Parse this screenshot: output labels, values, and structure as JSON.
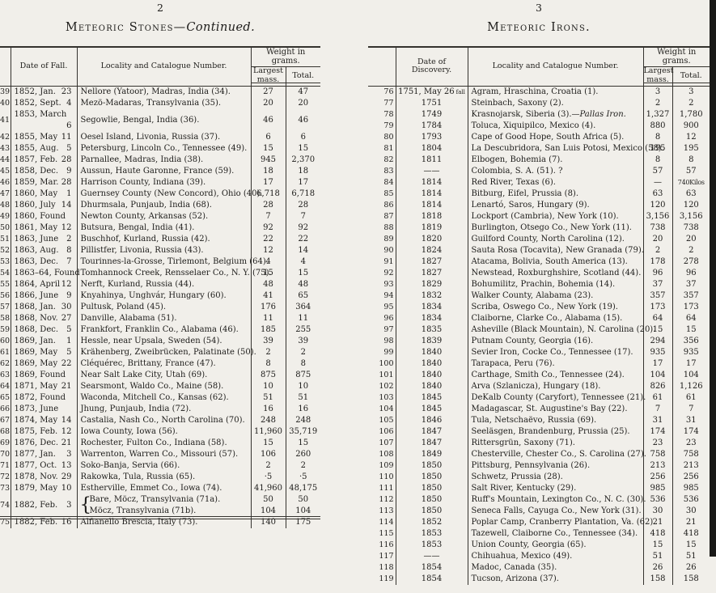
{
  "colors": {
    "paper": "#f1efea",
    "ink": "#1d1c1a",
    "line": "#34322e",
    "scan_edge": "#191917"
  },
  "left": {
    "page_number": "2",
    "title_name": "Meteoric Stones",
    "title_sep": "—",
    "title_cont": "Continued.",
    "table": {
      "date_style": "split",
      "headers": {
        "date": "Date of Fall.",
        "locality": "Locality and Catalogue Number.",
        "weight": "Weight in grams.",
        "largest": "Largest\nmass.",
        "total": "Total."
      },
      "rows": [
        {
          "no": "39",
          "date": "1852, Jan.",
          "day": "23",
          "loc": "Nellore (Yatoor), Madras, India (34).",
          "largest": "27",
          "total": "47"
        },
        {
          "no": "40",
          "date": "1852, Sept.",
          "day": "4",
          "loc": "Mezö-Madaras, Transylvania (35).",
          "largest": "20",
          "total": "20"
        },
        {
          "no": "41",
          "date": "1853, March",
          "day": "6",
          "loc": "Segowlie, Bengal, India (36).",
          "largest": "46",
          "total": "46"
        },
        {
          "no": "42",
          "date": "1855, May",
          "day": "11",
          "loc": "Oesel Island, Livonia, Russia (37).",
          "largest": "6",
          "total": "6"
        },
        {
          "no": "43",
          "date": "1855, Aug.",
          "day": "5",
          "loc": "Petersburg, Lincoln Co., Tennessee (49).",
          "largest": "15",
          "total": "15"
        },
        {
          "no": "44",
          "date": "1857, Feb.",
          "day": "28",
          "loc": "Parnallee, Madras, India (38).",
          "largest": "945",
          "total": "2,370"
        },
        {
          "no": "45",
          "date": "1858, Dec.",
          "day": "9",
          "loc": "Aussun, Haute Garonne, France (59).",
          "largest": "18",
          "total": "18"
        },
        {
          "no": "46",
          "date": "1859, Mar.",
          "day": "28",
          "loc": "Harrison County, Indiana (39).",
          "largest": "17",
          "total": "17"
        },
        {
          "no": "47",
          "date": "1860, May",
          "day": "1",
          "loc": "Guernsey County (New Concord), Ohio (40).",
          "largest": "6,718",
          "total": "6,718"
        },
        {
          "no": "48",
          "date": "1860, July",
          "day": "14",
          "loc": "Dhurmsala, Punjaub, India (68).",
          "largest": "28",
          "total": "28"
        },
        {
          "no": "49",
          "date": "1860, Found",
          "day": "",
          "loc": "Newton County, Arkansas (52).",
          "largest": "7",
          "total": "7"
        },
        {
          "no": "50",
          "date": "1861, May",
          "day": "12",
          "loc": "Butsura, Bengal, India (41).",
          "largest": "92",
          "total": "92"
        },
        {
          "no": "51",
          "date": "1863, June",
          "day": "2",
          "loc": "Buschhof, Kurland, Russia (42).",
          "largest": "22",
          "total": "22"
        },
        {
          "no": "52",
          "date": "1863, Aug.",
          "day": "8",
          "loc": "Pillistfer, Livonia, Russia (43).",
          "largest": "12",
          "total": "14"
        },
        {
          "no": "53",
          "date": "1863, Dec.",
          "day": "7",
          "loc": "Tourinnes-la-Grosse, Tirlemont, Belgium (64).",
          "largest": "4",
          "total": "4"
        },
        {
          "no": "54",
          "date": "1863–64, Found",
          "day": "",
          "loc": "Tomhannock Creek, Rensselaer Co., N. Y. (75).",
          "largest": "15",
          "total": "15"
        },
        {
          "no": "55",
          "date": "1864, April",
          "day": "12",
          "loc": "Nerft, Kurland, Russia (44).",
          "largest": "48",
          "total": "48"
        },
        {
          "no": "56",
          "date": "1866, June",
          "day": "9",
          "loc": "Knyahinya, Unghvár, Hungary (60).",
          "largest": "41",
          "total": "65"
        },
        {
          "no": "57",
          "date": "1868, Jan.",
          "day": "30",
          "loc": "Pultusk, Poland (45).",
          "largest": "176",
          "total": "364"
        },
        {
          "no": "58",
          "date": "1868, Nov.",
          "day": "27",
          "loc": "Danville, Alabama (51).",
          "largest": "11",
          "total": "11"
        },
        {
          "no": "59",
          "date": "1868, Dec.",
          "day": "5",
          "loc": "Frankfort, Franklin Co., Alabama (46).",
          "largest": "185",
          "total": "255"
        },
        {
          "no": "60",
          "date": "1869, Jan.",
          "day": "1",
          "loc": "Hessle, near Upsala, Sweden (54).",
          "largest": "39",
          "total": "39"
        },
        {
          "no": "61",
          "date": "1869, May",
          "day": "5",
          "loc": "Krähenberg, Zweibrücken, Palatinate (50).",
          "largest": "2",
          "total": "2"
        },
        {
          "no": "62",
          "date": "1869, May",
          "day": "22",
          "loc": "Cléquérec, Brittany, France (47).",
          "largest": "8",
          "total": "8"
        },
        {
          "no": "63",
          "date": "1869, Found",
          "day": "",
          "loc": "Near Salt Lake City, Utah (69).",
          "largest": "875",
          "total": "875"
        },
        {
          "no": "64",
          "date": "1871, May",
          "day": "21",
          "loc": "Searsmont, Waldo Co., Maine (58).",
          "largest": "10",
          "total": "10"
        },
        {
          "no": "65",
          "date": "1872, Found",
          "day": "",
          "loc": "Waconda, Mitchell Co., Kansas (62).",
          "largest": "51",
          "total": "51"
        },
        {
          "no": "66",
          "date": "1873, June",
          "day": "",
          "loc": "Jhung, Punjaub, India (72).",
          "largest": "16",
          "total": "16"
        },
        {
          "no": "67",
          "date": "1874, May",
          "day": "14",
          "loc": "Castalia, Nash Co., North Carolina (70).",
          "largest": "248",
          "total": "248"
        },
        {
          "no": "68",
          "date": "1875, Feb.",
          "day": "12",
          "loc": "Iowa County, Iowa (56).",
          "largest": "11,960",
          "total": "35,719"
        },
        {
          "no": "69",
          "date": "1876, Dec.",
          "day": "21",
          "loc": "Rochester, Fulton Co., Indiana (58).",
          "largest": "15",
          "total": "15"
        },
        {
          "no": "70",
          "date": "1877, Jan.",
          "day": "3",
          "loc": "Warrenton, Warren Co., Missouri (57).",
          "largest": "106",
          "total": "260"
        },
        {
          "no": "71",
          "date": "1877, Oct.",
          "day": "13",
          "loc": "Soko-Banja, Servia (66).",
          "largest": "2",
          "total": "2"
        },
        {
          "no": "72",
          "date": "1878, Nov.",
          "day": "29",
          "loc": "Rakowka, Tula, Russia (65).",
          "largest": "·5",
          "total": "·5"
        },
        {
          "no": "73",
          "date": "1879, May",
          "day": "10",
          "loc": "Estherville, Emmet Co., Iowa (74).",
          "largest": "41,960",
          "total": "48,175"
        },
        {
          "no": "74",
          "date": "1882, Feb.",
          "day": "3",
          "span": 2,
          "brace": true,
          "loc": "Bare, Möcz, Transylvania (71a).",
          "largest": "50",
          "total": "50"
        },
        {
          "cont": true,
          "loc": "Möcz, Transylvania (71b).",
          "largest": "104",
          "total": "104"
        },
        {
          "no": "75",
          "date": "1882, Feb.",
          "day": "16",
          "loc": "Alfianello Brescia, Italy (73).",
          "largest": "140",
          "total": "175"
        }
      ]
    }
  },
  "right": {
    "page_number": "3",
    "title_name": "Meteoric Irons.",
    "table": {
      "date_style": "center",
      "headers": {
        "date": "Date of\nDiscovery.",
        "locality": "Locality and Catalogue Number.",
        "weight": "Weight in grams.",
        "largest": "Largest\nmass.",
        "total": "Total."
      },
      "rows": [
        {
          "no": "76",
          "date": "1751, May 26",
          "note": "fall",
          "loc": "Agram, Hraschina, Croatia (1).",
          "largest": "3",
          "total": "3"
        },
        {
          "no": "77",
          "date": "1751",
          "loc": "Steinbach, Saxony (2).",
          "largest": "2",
          "total": "2"
        },
        {
          "no": "78",
          "date": "1749",
          "loc": "Krasnojarsk, Siberia (3).",
          "loc_em": "—Pallas Iron.",
          "largest": "1,327",
          "total": "1,780"
        },
        {
          "no": "79",
          "date": "1784",
          "loc": "Toluca, Xiquipilco, Mexico (4).",
          "largest": "880",
          "total": "900"
        },
        {
          "no": "80",
          "date": "1793",
          "loc": "Cape of Good Hope, South Africa (5).",
          "largest": "8",
          "total": "12"
        },
        {
          "no": "81",
          "date": "1804",
          "loc": "La Descubridora, San Luis Potosi, Mexico (58).",
          "largest": "195",
          "total": "195"
        },
        {
          "no": "82",
          "date": "1811",
          "loc": "Elbogen, Bohemia (7).",
          "largest": "8",
          "total": "8"
        },
        {
          "no": "83",
          "date": "——",
          "loc": "Colombia, S. A. (51). ?",
          "largest": "57",
          "total": "57"
        },
        {
          "no": "84",
          "date": "1814",
          "loc": "Red River, Texas (6).",
          "largest": "—",
          "total": "740Kilos"
        },
        {
          "no": "85",
          "date": "1814",
          "loc": "Bitburg, Eifel, Prussia (8).",
          "largest": "63",
          "total": "63"
        },
        {
          "no": "86",
          "date": "1814",
          "loc": "Lenartó, Saros, Hungary (9).",
          "largest": "120",
          "total": "120"
        },
        {
          "no": "87",
          "date": "1818",
          "loc": "Lockport (Cambria), New York (10).",
          "largest": "3,156",
          "total": "3,156"
        },
        {
          "no": "88",
          "date": "1819",
          "loc": "Burlington, Otsego Co., New York (11).",
          "largest": "738",
          "total": "738"
        },
        {
          "no": "89",
          "date": "1820",
          "loc": "Guilford County, North Carolina (12).",
          "largest": "20",
          "total": "20"
        },
        {
          "no": "90",
          "date": "1824",
          "loc": "Sauta Rosa (Tocavita), New Granada (79).",
          "largest": "2",
          "total": "2"
        },
        {
          "no": "91",
          "date": "1827",
          "loc": "Atacama, Bolivia, South America (13).",
          "largest": "178",
          "total": "278"
        },
        {
          "no": "92",
          "date": "1827",
          "loc": "Newstead, Roxburghshire, Scotland (44).",
          "largest": "96",
          "total": "96"
        },
        {
          "no": "93",
          "date": "1829",
          "loc": "Bohumilitz, Prachin, Bohemia (14).",
          "largest": "37",
          "total": "37"
        },
        {
          "no": "94",
          "date": "1832",
          "loc": "Walker County, Alabama (23).",
          "largest": "357",
          "total": "357"
        },
        {
          "no": "95",
          "date": "1834",
          "loc": "Scriba, Oswego Co., New York (19).",
          "largest": "173",
          "total": "173"
        },
        {
          "no": "96",
          "date": "1834",
          "loc": "Claiborne, Clarke Co., Alabama (15).",
          "largest": "64",
          "total": "64"
        },
        {
          "no": "97",
          "date": "1835",
          "loc": "Asheville (Black Mountain), N. Carolina (20).",
          "largest": "15",
          "total": "15"
        },
        {
          "no": "98",
          "date": "1839",
          "loc": "Putnam County, Georgia (16).",
          "largest": "294",
          "total": "356"
        },
        {
          "no": "99",
          "date": "1840",
          "loc": "Sevier Iron, Cocke Co., Tennessee (17).",
          "largest": "935",
          "total": "935"
        },
        {
          "no": "100",
          "date": "1840",
          "loc": "Tarapaca, Peru (76).",
          "largest": "17",
          "total": "17"
        },
        {
          "no": "101",
          "date": "1840",
          "loc": "Carthage, Smith Co., Tennessee (24).",
          "largest": "104",
          "total": "104"
        },
        {
          "no": "102",
          "date": "1840",
          "loc": "Arva (Szlanicza), Hungary (18).",
          "largest": "826",
          "total": "1,126"
        },
        {
          "no": "103",
          "date": "1845",
          "loc": "DeKalb County (Caryfort), Tennessee (21).",
          "largest": "61",
          "total": "61"
        },
        {
          "no": "104",
          "date": "1845",
          "loc": "Madagascar, St. Augustine's Bay (22).",
          "largest": "7",
          "total": "7"
        },
        {
          "no": "105",
          "date": "1846",
          "loc": "Tula, Netschaëvo, Russia (69).",
          "largest": "31",
          "total": "31"
        },
        {
          "no": "106",
          "date": "1847",
          "loc": "Seeläsgen, Brandenburg, Prussia (25).",
          "largest": "174",
          "total": "174"
        },
        {
          "no": "107",
          "date": "1847",
          "loc": "Rittersgrün, Saxony (71).",
          "largest": "23",
          "total": "23"
        },
        {
          "no": "108",
          "date": "1849",
          "loc": "Chesterville, Chester Co., S. Carolina (27).",
          "largest": "758",
          "total": "758"
        },
        {
          "no": "109",
          "date": "1850",
          "loc": "Pittsburg, Pennsylvania (26).",
          "largest": "213",
          "total": "213"
        },
        {
          "no": "110",
          "date": "1850",
          "loc": "Schwetz, Prussia (28).",
          "largest": "256",
          "total": "256"
        },
        {
          "no": "111",
          "date": "1850",
          "loc": "Salt River, Kentucky (29).",
          "largest": "985",
          "total": "985"
        },
        {
          "no": "112",
          "date": "1850",
          "loc": "Ruff's Mountain, Lexington Co., N. C. (30).",
          "largest": "536",
          "total": "536"
        },
        {
          "no": "113",
          "date": "1850",
          "loc": "Seneca Falls, Cayuga Co., New York (31).",
          "largest": "30",
          "total": "30"
        },
        {
          "no": "114",
          "date": "1852",
          "loc": "Poplar Camp, Cranberry Plantation, Va. (62).",
          "largest": "21",
          "total": "21"
        },
        {
          "no": "115",
          "date": "1853",
          "loc": "Tazewell, Claiborne Co., Tennessee (34).",
          "largest": "418",
          "total": "418"
        },
        {
          "no": "116",
          "date": "1853",
          "loc": "Union County, Georgia (65).",
          "largest": "15",
          "total": "15"
        },
        {
          "no": "117",
          "date": "——",
          "loc": "Chihuahua, Mexico (49).",
          "largest": "51",
          "total": "51"
        },
        {
          "no": "118",
          "date": "1854",
          "loc": "Madoc, Canada (35).",
          "largest": "26",
          "total": "26"
        },
        {
          "no": "119",
          "date": "1854",
          "loc": "Tucson, Arizona (37).",
          "largest": "158",
          "total": "158"
        }
      ]
    }
  }
}
